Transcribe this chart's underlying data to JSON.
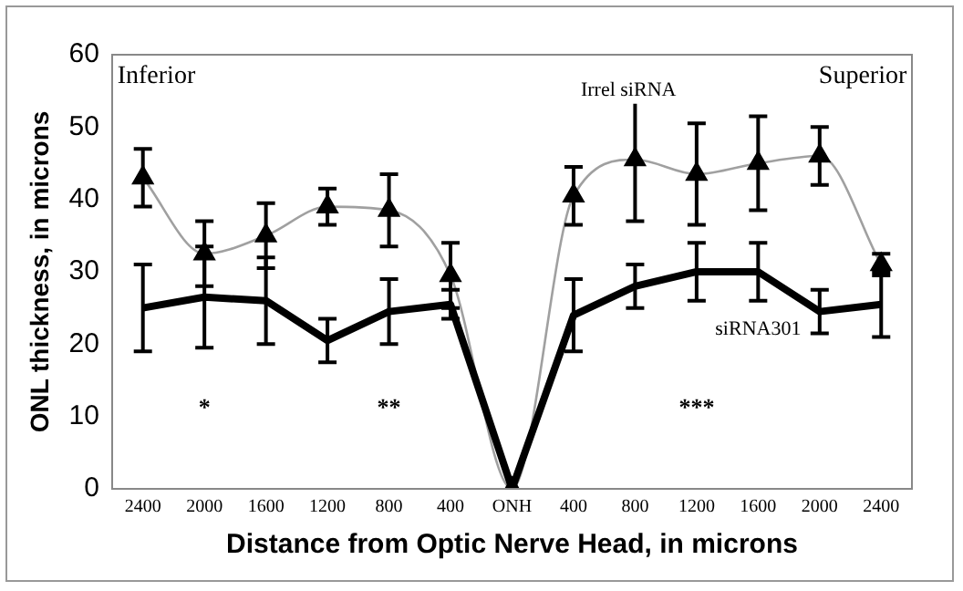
{
  "chart_data": {
    "type": "line",
    "xlabel": "Distance from Optic Nerve Head, in microns",
    "ylabel": "ONL thickness, in microns",
    "categories": [
      "2400",
      "2000",
      "1600",
      "1200",
      "800",
      "400",
      "ONH",
      "400",
      "800",
      "1200",
      "1600",
      "2000",
      "2400"
    ],
    "series": [
      {
        "name": "Irrel siRNA",
        "color": "#a0a0a0",
        "marker": "triangle",
        "values": [
          43,
          32.5,
          35,
          39,
          38.5,
          29.5,
          0,
          40.5,
          45.5,
          43.5,
          45,
          46,
          31
        ],
        "errors": [
          4,
          4.5,
          4.5,
          2.5,
          5,
          4.5,
          null,
          4,
          8.5,
          7,
          6.5,
          4,
          1.5
        ]
      },
      {
        "name": "siRNA301",
        "color": "#000000",
        "marker": "none",
        "values": [
          25,
          26.5,
          26,
          20.5,
          24.5,
          25.5,
          0,
          24,
          28,
          30,
          30,
          24.5,
          25.5
        ],
        "errors": [
          6,
          7,
          6,
          3,
          4.5,
          2,
          null,
          5,
          3,
          4,
          4,
          3,
          4.5
        ]
      }
    ],
    "ylim": [
      0,
      60
    ],
    "yticks": [
      0,
      10,
      20,
      30,
      40,
      50,
      60
    ],
    "grid": false,
    "legend": false,
    "annotations": [
      "Inferior",
      "Superior",
      "*",
      "**",
      "***"
    ]
  }
}
